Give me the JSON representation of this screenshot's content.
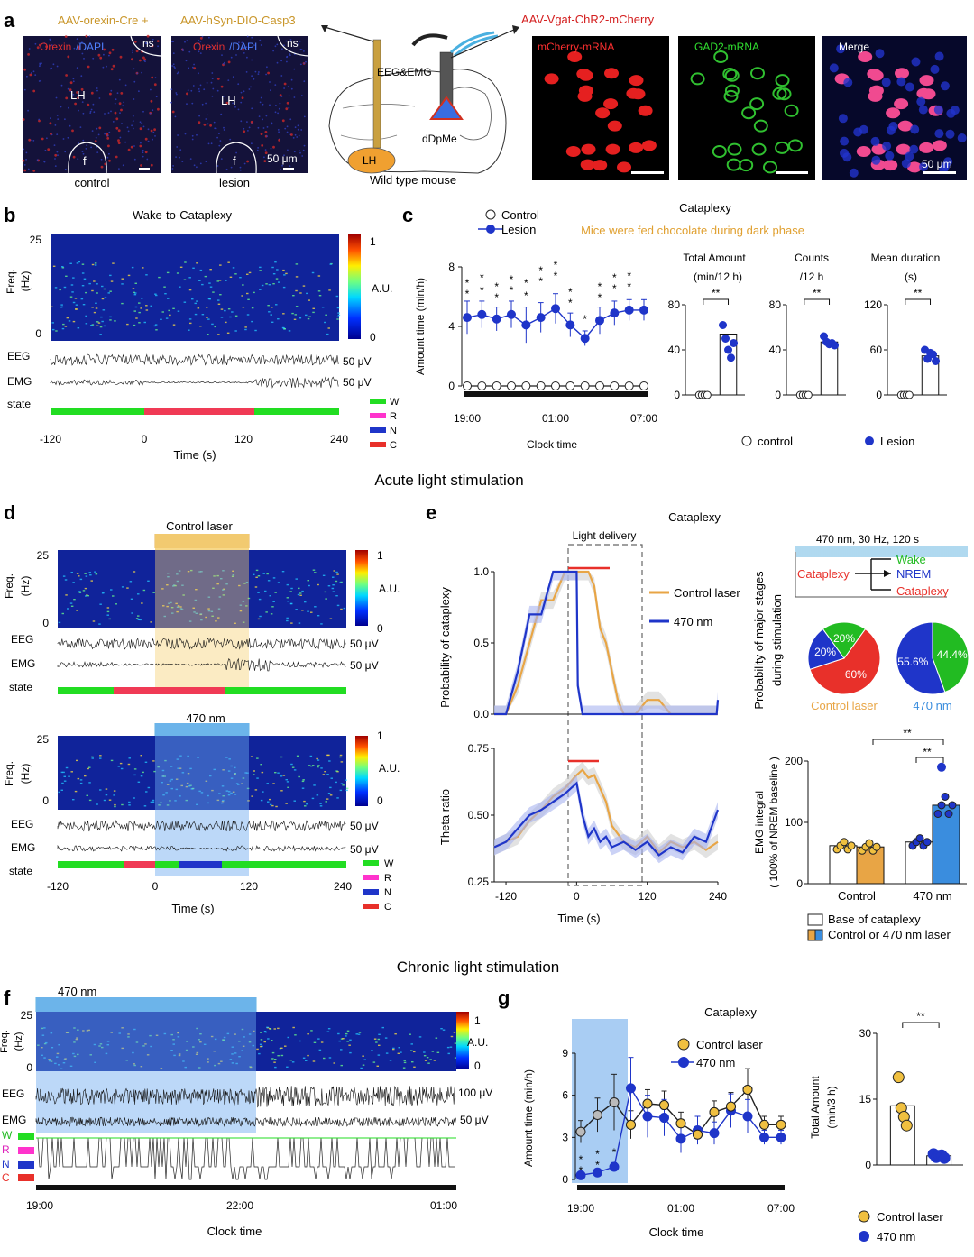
{
  "colors": {
    "blue": "#1f35c9",
    "gold": "#f0c040",
    "orange": "#e8a545",
    "red": "#e8302a",
    "green": "#22dd22",
    "magenta": "#ff33cc",
    "laser_blue": "#3a8dde",
    "spec_bg": "#10239a"
  },
  "panel_letters": {
    "a": "a",
    "b": "b",
    "c": "c",
    "d": "d",
    "e": "e",
    "f": "f",
    "g": "g"
  },
  "section_titles": {
    "acute": "Acute light stimulation",
    "chronic": "Chronic light stimulation"
  },
  "panel_a": {
    "virus1": "AAV-orexin-Cre +",
    "virus2": "AAV-hSyn-DIO-Casp3",
    "virus3": "AAV-Vgat-ChR2-mCherry",
    "orexin": "Orexin",
    "slash_dapi": " /DAPI",
    "ns": "ns",
    "lh": "LH",
    "f": "f",
    "scale": "50 μm",
    "control": "control",
    "lesion": "lesion",
    "eeg_emg": "EEG&EMG",
    "dDpMe": "dDpMe",
    "brain_lh": "LH",
    "wild_type": "Wild type mouse",
    "mcherry": "mCherry-mRNA",
    "gad2": "GAD2-mRNA",
    "merge": "Merge"
  },
  "panel_b": {
    "title": "Wake-to-Cataplexy",
    "freq": "Freq.",
    "hz": "(Hz)",
    "y_top": "25",
    "y_bot": "0",
    "cb_top": "1",
    "cb_mid": "A.U.",
    "cb_bot": "0",
    "eeg": "EEG",
    "emg": "EMG",
    "eeg_scale": "50 μV",
    "emg_scale": "50 μV",
    "state": "state",
    "legend": [
      "W",
      "R",
      "N",
      "C"
    ],
    "xticks": [
      "-120",
      "0",
      "120",
      "240"
    ],
    "xlabel": "Time (s)"
  },
  "panel_c": {
    "legend_control": "Control",
    "legend_lesion": "Lesion",
    "title": "Cataplexy",
    "note": "Mice were fed chocolate during dark phase",
    "ylabel": "Amount time (min/h)",
    "yticks": [
      "0",
      "4",
      "8"
    ],
    "xticks": [
      "19:00",
      "01:00",
      "07:00"
    ],
    "xlabel": "Clock time",
    "sub1_title1": "Total Amount",
    "sub1_title2": "(min/12 h)",
    "sub2_title1": "Counts",
    "sub2_title2": "/12 h",
    "sub3_title1": "Mean duration",
    "sub3_title2": "(s)",
    "sig": "**",
    "bottom_control": "control",
    "bottom_lesion": "Lesion",
    "sub1_yticks": [
      "0",
      "40",
      "80"
    ],
    "sub2_yticks": [
      "0",
      "40",
      "80"
    ],
    "sub3_yticks": [
      "0",
      "60",
      "120"
    ]
  },
  "panel_d": {
    "control_laser": "Control laser",
    "nm470": "470 nm",
    "freq": "Freq.",
    "hz": "(Hz)",
    "y_top": "25",
    "y_bot": "0",
    "cb_top": "1",
    "cb_mid": "A.U.",
    "cb_bot": "0",
    "eeg": "EEG",
    "emg": "EMG",
    "eeg_scale": "50 μV",
    "emg_scale": "50 μV",
    "state": "state",
    "legend": [
      "W",
      "R",
      "N",
      "C"
    ],
    "xticks": [
      "-120",
      "0",
      "120",
      "240"
    ],
    "xlabel": "Time (s)"
  },
  "panel_e": {
    "title": "Cataplexy",
    "light_delivery": "Light delivery",
    "ylabel_top": "Probability of cataplexy",
    "yticks_top": [
      "0.0",
      "0.5",
      "1.0"
    ],
    "ylabel_bot": "Theta ratio",
    "yticks_bot": [
      "0.25",
      "0.50",
      "0.75"
    ],
    "xticks": [
      "-120",
      "0",
      "120",
      "240"
    ],
    "xlabel": "Time (s)",
    "legend_control": "Control laser",
    "legend_470": "470 nm",
    "stim_label": "470 nm, 30 Hz, 120 s",
    "cataplexy": "Cataplexy",
    "wake": "Wake",
    "nrem": "NREM",
    "cataplexy2": "Cataplexy",
    "prob_ylabel1": "Probability of major stages",
    "prob_ylabel2": "during stimulation",
    "pie1_label": "Control laser",
    "pie2_label": "470 nm",
    "emg_ylabel1": "EMG integral",
    "emg_ylabel2": "( 100% of NREM baseline )",
    "emg_yticks": [
      "0",
      "100",
      "200"
    ],
    "emg_xticks": [
      "Control",
      "470 nm"
    ],
    "sig": "**",
    "legend_base": "Base of cataplexy",
    "legend_laser": "Control or   470  nm laser"
  },
  "panel_f": {
    "nm470": "470 nm",
    "freq": "Freq.",
    "hz": "(Hz)",
    "y_top": "25",
    "y_bot": "0",
    "cb_top": "1",
    "cb_mid": "A.U.",
    "cb_bot": "0",
    "eeg": "EEG",
    "emg": "EMG",
    "eeg_scale": "100 μV",
    "emg_scale": "50 μV",
    "legend": [
      "W",
      "R",
      "N",
      "C"
    ],
    "xticks": [
      "19:00",
      "22:00",
      "01:00"
    ],
    "xlabel": "Clock time"
  },
  "panel_g": {
    "title": "Cataplexy",
    "legend_control": "Control laser",
    "legend_470": "470 nm",
    "ylabel": "Amount time (min/h)",
    "yticks": [
      "0",
      "3",
      "6",
      "9"
    ],
    "xticks": [
      "19:00",
      "01:00",
      "07:00"
    ],
    "xlabel": "Clock time",
    "total_ylabel1": "Total Amount",
    "total_ylabel2": "(min/3 h)",
    "total_yticks": [
      "0",
      "15",
      "30"
    ],
    "sig": "**",
    "bottom_control": "Control laser",
    "bottom_470": "470 nm"
  },
  "chart_data": [
    {
      "id": "c_timecourse",
      "type": "line",
      "xlabel": "Clock time",
      "ylabel": "Amount time (min/h)",
      "ylim": [
        0,
        8
      ],
      "x": [
        "19:00",
        "20:00",
        "21:00",
        "22:00",
        "23:00",
        "00:00",
        "01:00",
        "02:00",
        "03:00",
        "04:00",
        "05:00",
        "06:00",
        "07:00"
      ],
      "series": [
        {
          "name": "Control",
          "values": [
            0,
            0,
            0,
            0,
            0,
            0,
            0,
            0,
            0,
            0,
            0,
            0,
            0
          ]
        },
        {
          "name": "Lesion",
          "values": [
            4.6,
            4.8,
            4.5,
            4.8,
            4.1,
            4.6,
            5.2,
            4.1,
            3.2,
            4.4,
            4.9,
            5.1,
            5.1
          ],
          "err": [
            1.1,
            0.9,
            0.8,
            0.9,
            1.2,
            1.0,
            1.0,
            0.8,
            0.5,
            0.9,
            0.8,
            0.7,
            0.7
          ]
        }
      ]
    },
    {
      "id": "c_total",
      "type": "bar",
      "categories": [
        "control",
        "Lesion"
      ],
      "values": [
        0,
        54
      ],
      "ylim": [
        0,
        80
      ],
      "points": [
        [
          0,
          0,
          0,
          0
        ],
        [
          62,
          50,
          40,
          33,
          46
        ]
      ]
    },
    {
      "id": "c_counts",
      "type": "bar",
      "categories": [
        "control",
        "Lesion"
      ],
      "values": [
        0,
        47
      ],
      "ylim": [
        0,
        80
      ],
      "points": [
        [
          0,
          0,
          0,
          0
        ],
        [
          52,
          47,
          45,
          46,
          44
        ]
      ]
    },
    {
      "id": "c_meandur",
      "type": "bar",
      "categories": [
        "control",
        "Lesion"
      ],
      "values": [
        0,
        52
      ],
      "ylim": [
        0,
        120
      ],
      "points": [
        [
          0,
          0,
          0,
          0
        ],
        [
          60,
          48,
          56,
          54,
          45
        ]
      ]
    },
    {
      "id": "e_prob",
      "type": "line",
      "xlabel": "Time (s)",
      "ylabel": "Probability of cataplexy",
      "ylim": [
        0,
        1
      ],
      "x": [
        -140,
        -120,
        -100,
        -80,
        -60,
        -40,
        -20,
        0,
        2,
        10,
        20,
        30,
        40,
        50,
        60,
        70,
        80,
        100,
        120,
        140,
        160,
        200,
        238,
        240
      ],
      "series": [
        {
          "name": "Control laser",
          "values": [
            0,
            0,
            0.2,
            0.5,
            0.8,
            0.8,
            1.0,
            1.0,
            1.0,
            1.0,
            1.0,
            0.9,
            0.6,
            0.5,
            0.3,
            0.1,
            0,
            0,
            0.1,
            0.1,
            0,
            0,
            0,
            0
          ]
        },
        {
          "name": "470 nm",
          "values": [
            0,
            0,
            0.3,
            0.7,
            0.7,
            1.0,
            1.0,
            1.0,
            0.2,
            0,
            0,
            0,
            0,
            0,
            0,
            0,
            0,
            0,
            0,
            0,
            0,
            0,
            0,
            0.1
          ]
        }
      ]
    },
    {
      "id": "e_theta",
      "type": "line",
      "xlabel": "Time (s)",
      "ylabel": "Theta ratio",
      "ylim": [
        0.25,
        0.75
      ],
      "x": [
        -140,
        -120,
        -100,
        -80,
        -60,
        -40,
        -20,
        0,
        10,
        20,
        30,
        40,
        50,
        60,
        80,
        100,
        120,
        140,
        160,
        180,
        200,
        220,
        240
      ],
      "series": [
        {
          "name": "Control laser",
          "values": [
            0.38,
            0.4,
            0.42,
            0.48,
            0.52,
            0.57,
            0.6,
            0.65,
            0.67,
            0.64,
            0.65,
            0.6,
            0.55,
            0.46,
            0.4,
            0.38,
            0.42,
            0.36,
            0.4,
            0.38,
            0.4,
            0.37,
            0.4
          ]
        },
        {
          "name": "470 nm",
          "values": [
            0.38,
            0.4,
            0.45,
            0.5,
            0.52,
            0.55,
            0.58,
            0.62,
            0.5,
            0.42,
            0.45,
            0.4,
            0.42,
            0.38,
            0.4,
            0.37,
            0.4,
            0.35,
            0.38,
            0.36,
            0.42,
            0.4,
            0.52
          ]
        }
      ]
    },
    {
      "id": "e_pie_control",
      "type": "pie",
      "title": "Control laser",
      "labels": [
        "Cataplexy",
        "NREM",
        "Wake"
      ],
      "values": [
        60,
        20,
        20
      ]
    },
    {
      "id": "e_pie_470",
      "type": "pie",
      "title": "470 nm",
      "labels": [
        "Wake",
        "NREM"
      ],
      "values": [
        44.4,
        55.6
      ]
    },
    {
      "id": "e_emg",
      "type": "bar",
      "categories": [
        "Control",
        "470 nm"
      ],
      "ylim": [
        0,
        200
      ],
      "series": [
        {
          "name": "Base of cataplexy",
          "values": [
            62,
            68
          ]
        },
        {
          "name": "Control or   470  nm laser",
          "values": [
            60,
            128
          ]
        }
      ]
    },
    {
      "id": "g_timecourse",
      "type": "line",
      "xlabel": "Clock time",
      "ylabel": "Amount time (min/h)",
      "ylim": [
        0,
        9
      ],
      "x": [
        "19:00",
        "20:00",
        "21:00",
        "22:00",
        "23:00",
        "00:00",
        "01:00",
        "02:00",
        "03:00",
        "04:00",
        "05:00",
        "06:00",
        "07:00"
      ],
      "series": [
        {
          "name": "Control laser",
          "values": [
            3.4,
            4.6,
            5.5,
            3.9,
            5.4,
            5.3,
            4.0,
            3.2,
            4.8,
            5.2,
            6.4,
            3.9,
            3.9
          ],
          "err": [
            0.8,
            1.2,
            2.0,
            1.0,
            1.0,
            1.0,
            0.8,
            0.5,
            0.8,
            1.0,
            1.5,
            0.6,
            0.6
          ]
        },
        {
          "name": "470 nm",
          "values": [
            0.3,
            0.5,
            0.9,
            6.5,
            4.5,
            4.4,
            2.9,
            3.5,
            3.3,
            4.9,
            4.5,
            3.0,
            3.0
          ],
          "err": [
            0.1,
            0.2,
            0.3,
            2.2,
            1.5,
            1.3,
            1.0,
            1.0,
            0.8,
            1.2,
            1.2,
            0.5,
            0.5
          ]
        }
      ]
    },
    {
      "id": "g_total",
      "type": "bar",
      "categories": [
        "Control laser",
        "470 nm"
      ],
      "values": [
        13.5,
        2.1
      ],
      "ylim": [
        0,
        30
      ],
      "points": [
        [
          20,
          13,
          11,
          9
        ],
        [
          2.5,
          1.8,
          2.1,
          2.2,
          1.6
        ]
      ]
    }
  ]
}
